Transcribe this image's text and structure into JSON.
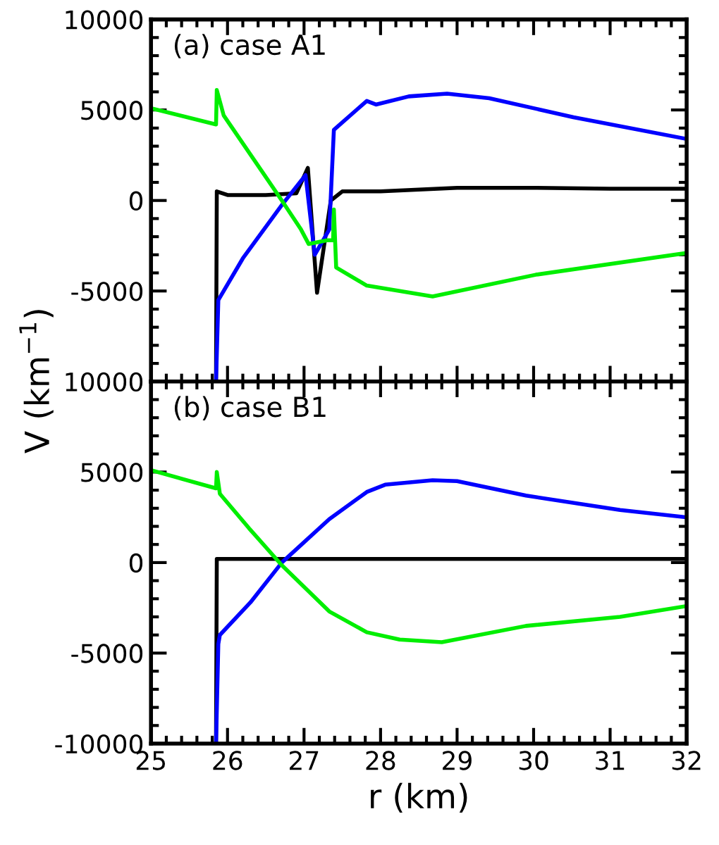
{
  "chart_data": [
    {
      "type": "line",
      "title": "(a) case A1",
      "ylabel": "V (km$^{−1}$)",
      "xlim": [
        25,
        32
      ],
      "ylim": [
        -10000,
        10000
      ],
      "xticks": [
        25,
        26,
        27,
        28,
        29,
        30,
        31,
        32
      ],
      "yticks": [
        {
          "value": -10000,
          "label": "10000"
        },
        -5000,
        0,
        5000,
        10000
      ],
      "tick_labels": "y",
      "grid": false,
      "series": [
        {
          "color": "#000000",
          "x": [
            25.85,
            25.86,
            26.0,
            26.5,
            26.9,
            27.05,
            27.17,
            27.35,
            27.5,
            28.0,
            29.0,
            30.0,
            31.0,
            32.0
          ],
          "values": [
            -10000,
            500,
            300,
            300,
            400,
            1800,
            -5100,
            0,
            500,
            500,
            700,
            700,
            650,
            650
          ]
        },
        {
          "color": "#0000ff",
          "x": [
            25.85,
            25.88,
            26.2,
            26.71,
            27.02,
            27.14,
            27.33,
            27.39,
            27.82,
            27.94,
            28.37,
            28.87,
            29.42,
            30.52,
            32.0
          ],
          "values": [
            -10000,
            -5500,
            -3200,
            -250,
            1400,
            -3000,
            -1600,
            3900,
            5500,
            5300,
            5750,
            5900,
            5650,
            4600,
            3400
          ]
        },
        {
          "color": "#00ee00",
          "x": [
            25.0,
            25.85,
            25.86,
            25.95,
            26.71,
            26.96,
            27.06,
            27.3,
            27.38,
            27.39,
            27.42,
            27.82,
            28.68,
            30.03,
            32.0
          ],
          "values": [
            5100,
            4200,
            6100,
            4700,
            0,
            -1600,
            -2400,
            -2200,
            -2200,
            -500,
            -3700,
            -4700,
            -5300,
            -4100,
            -2900
          ]
        }
      ]
    },
    {
      "type": "line",
      "title": "(b) case B1",
      "xlabel": "r (km)",
      "xlim": [
        25,
        32
      ],
      "ylim": [
        -10000,
        10000
      ],
      "xticks": [
        25,
        26,
        27,
        28,
        29,
        30,
        31,
        32
      ],
      "yticks": [
        -10000,
        -5000,
        0,
        5000
      ],
      "grid": false,
      "series": [
        {
          "color": "#000000",
          "x": [
            25.85,
            25.86,
            26.5,
            27.5,
            28.5,
            29.5,
            30.5,
            31.5,
            32.0
          ],
          "values": [
            -10000,
            200,
            200,
            200,
            200,
            200,
            200,
            200,
            200
          ]
        },
        {
          "color": "#0000ff",
          "x": [
            25.85,
            25.88,
            25.9,
            26.3,
            26.71,
            27.33,
            27.82,
            28.06,
            28.68,
            29.0,
            29.9,
            31.13,
            32.0
          ],
          "values": [
            -10000,
            -4500,
            -4000,
            -2200,
            0,
            2400,
            3900,
            4300,
            4550,
            4500,
            3700,
            2900,
            2500
          ]
        },
        {
          "color": "#00ee00",
          "x": [
            25.0,
            25.85,
            25.86,
            25.9,
            26.28,
            26.71,
            27.33,
            27.82,
            28.25,
            28.8,
            29.9,
            31.13,
            32.0
          ],
          "values": [
            5100,
            4100,
            5000,
            3800,
            1900,
            -150,
            -2700,
            -3850,
            -4250,
            -4400,
            -3500,
            -3000,
            -2400
          ]
        }
      ]
    }
  ]
}
